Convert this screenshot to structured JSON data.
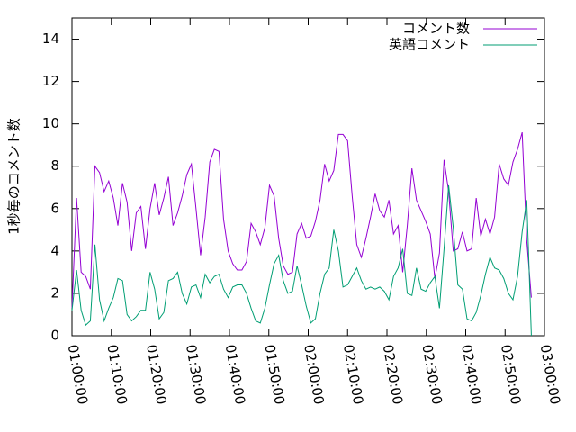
{
  "chart_data": {
    "type": "line",
    "ylabel": "1秒毎のコメント数",
    "x": [
      "01:00:00",
      "01:01:10",
      "01:02:20",
      "01:03:30",
      "01:04:40",
      "01:05:50",
      "01:07:00",
      "01:08:10",
      "01:09:20",
      "01:10:30",
      "01:11:40",
      "01:12:50",
      "01:14:00",
      "01:15:10",
      "01:16:20",
      "01:17:30",
      "01:18:40",
      "01:19:50",
      "01:21:00",
      "01:22:10",
      "01:23:20",
      "01:24:30",
      "01:25:40",
      "01:26:50",
      "01:28:00",
      "01:29:10",
      "01:30:20",
      "01:31:30",
      "01:32:40",
      "01:33:50",
      "01:35:00",
      "01:36:10",
      "01:37:20",
      "01:38:30",
      "01:39:40",
      "01:40:50",
      "01:42:00",
      "01:43:10",
      "01:44:20",
      "01:45:30",
      "01:46:40",
      "01:47:50",
      "01:49:00",
      "01:50:10",
      "01:51:20",
      "01:52:30",
      "01:53:40",
      "01:54:50",
      "01:56:00",
      "01:57:10",
      "01:58:20",
      "01:59:30",
      "02:00:40",
      "02:01:50",
      "02:03:00",
      "02:04:10",
      "02:05:20",
      "02:06:30",
      "02:07:40",
      "02:08:50",
      "02:10:00",
      "02:11:10",
      "02:12:20",
      "02:13:30",
      "02:14:40",
      "02:15:50",
      "02:17:00",
      "02:18:10",
      "02:19:20",
      "02:20:30",
      "02:21:40",
      "02:22:50",
      "02:24:00",
      "02:25:10",
      "02:26:20",
      "02:27:30",
      "02:28:40",
      "02:29:50",
      "02:31:00",
      "02:32:10",
      "02:33:20",
      "02:34:30",
      "02:35:40",
      "02:36:50",
      "02:38:00",
      "02:39:10",
      "02:40:20",
      "02:41:30",
      "02:42:40",
      "02:43:50",
      "02:45:00",
      "02:46:10",
      "02:47:20",
      "02:48:30",
      "02:49:40",
      "02:50:50",
      "02:52:00",
      "02:53:10",
      "02:54:20",
      "02:55:30",
      "02:56:40"
    ],
    "series": [
      {
        "name": "コメント数",
        "color": "#9400d3",
        "values": [
          1.3,
          6.5,
          3,
          2.8,
          2.2,
          8,
          7.7,
          6.8,
          7.3,
          6.5,
          5.2,
          7.2,
          6.3,
          4,
          5.8,
          6.1,
          4.1,
          6,
          7.2,
          5.7,
          6.5,
          7.5,
          5.2,
          5.8,
          6.6,
          7.6,
          8.1,
          6,
          3.8,
          5.6,
          8.2,
          8.8,
          8.7,
          5.5,
          4,
          3.4,
          3.1,
          3.1,
          3.5,
          5.3,
          4.9,
          4.3,
          5.1,
          7.1,
          6.6,
          4.6,
          3.3,
          2.9,
          3,
          4.8,
          5.3,
          4.6,
          4.7,
          5.4,
          6.4,
          8.1,
          7.3,
          7.8,
          9.5,
          9.5,
          9.2,
          6.6,
          4.3,
          3.7,
          4.6,
          5.6,
          6.7,
          5.9,
          5.6,
          6.4,
          4.8,
          5.2,
          3,
          5.2,
          7.9,
          6.4,
          5.9,
          5.4,
          4.8,
          2.7,
          3.9,
          8.3,
          6.8,
          4,
          4.1,
          4.9,
          4,
          4.1,
          6.5,
          4.7,
          5.5,
          4.8,
          5.6,
          8.1,
          7.4,
          7.1,
          8.2,
          8.8,
          9.6,
          4.5,
          1.8
        ]
      },
      {
        "name": "英語コメント",
        "color": "#009e73",
        "values": [
          1.2,
          3.1,
          1.2,
          0.5,
          0.7,
          4.3,
          1.7,
          0.7,
          1.3,
          1.8,
          2.7,
          2.6,
          1,
          0.7,
          0.9,
          1.2,
          1.2,
          3,
          2.2,
          0.8,
          1.1,
          2.6,
          2.7,
          3,
          2,
          1.5,
          2.3,
          2.4,
          1.8,
          2.9,
          2.5,
          2.8,
          2.9,
          2.2,
          1.8,
          2.3,
          2.4,
          2.4,
          2,
          1.3,
          0.7,
          0.6,
          1.3,
          2.4,
          3.4,
          3.8,
          2.6,
          2,
          2.1,
          3.3,
          2.4,
          1.4,
          0.6,
          0.8,
          2,
          2.9,
          3.2,
          5,
          4,
          2.3,
          2.4,
          2.8,
          3.2,
          2.6,
          2.2,
          2.3,
          2.2,
          2.3,
          2.1,
          1.7,
          2.8,
          3.2,
          4.1,
          2,
          1.9,
          3.2,
          2.2,
          2.1,
          2.5,
          2.8,
          1.3,
          4.1,
          7.1,
          5.1,
          2.4,
          2.2,
          0.8,
          0.7,
          1.1,
          1.9,
          2.9,
          3.7,
          3.2,
          3.1,
          2.7,
          2,
          1.7,
          2.8,
          4.9,
          6.4,
          0
        ]
      }
    ],
    "xlim": [
      "01:00:00",
      "03:00:00"
    ],
    "xticks": [
      "01:00:00",
      "01:10:00",
      "01:20:00",
      "01:30:00",
      "01:40:00",
      "01:50:00",
      "02:00:00",
      "02:10:00",
      "02:20:00",
      "02:30:00",
      "02:40:00",
      "02:50:00",
      "03:00:00"
    ],
    "ylim": [
      0,
      15
    ],
    "yticks": [
      0,
      2,
      4,
      6,
      8,
      10,
      12,
      14
    ],
    "legend": "top-right",
    "grid": false
  }
}
